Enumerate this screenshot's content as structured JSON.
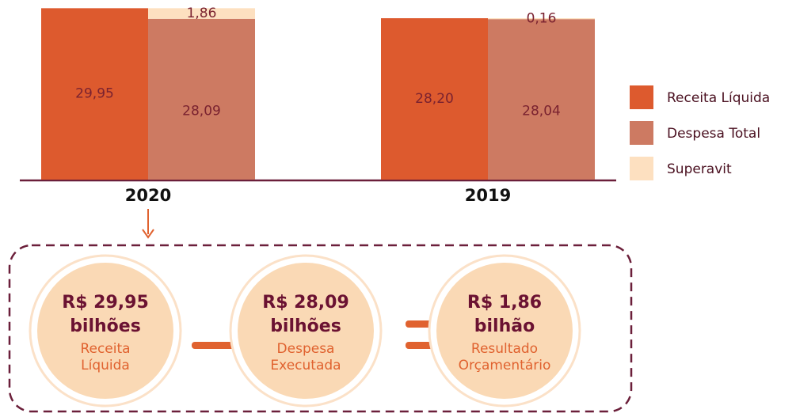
{
  "chart_data": {
    "type": "bar",
    "categories": [
      "2020",
      "2019"
    ],
    "series": [
      {
        "name": "Receita Líquida",
        "color": "#dd5a2e",
        "values": [
          29.95,
          28.2
        ],
        "value_labels": [
          "29,95",
          "28,20"
        ]
      },
      {
        "name": "Despesa Total",
        "color": "#cd7a62",
        "values": [
          28.09,
          28.04
        ],
        "value_labels": [
          "28,09",
          "28,04"
        ]
      },
      {
        "name": "Superavit",
        "color": "#fde0c0",
        "values": [
          1.86,
          0.16
        ],
        "value_labels": [
          "1,86",
          "0,16"
        ]
      }
    ],
    "ylim": [
      0,
      30
    ],
    "grid": false,
    "legend": "right"
  },
  "summary": [
    {
      "amount": "R$ 29,95",
      "unit": "bilhões",
      "label": [
        "Receita",
        "Líquida"
      ]
    },
    {
      "amount": "R$ 28,09",
      "unit": "bilhões",
      "label": [
        "Despesa",
        "Executada"
      ]
    },
    {
      "amount": "R$ 1,86",
      "unit": "bilhão",
      "label": [
        "Resultado",
        "Orçamentário"
      ]
    }
  ]
}
